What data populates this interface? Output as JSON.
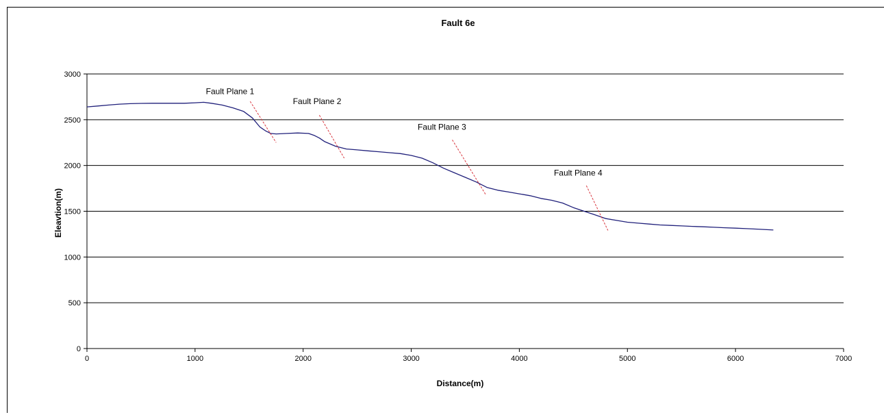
{
  "chart_data": {
    "type": "line",
    "title": "Fault 6e",
    "xlabel": "Distance(m)",
    "ylabel": "Eleavtion(m)",
    "xlim": [
      0,
      7000
    ],
    "ylim": [
      0,
      3000
    ],
    "x_ticks": [
      0,
      1000,
      2000,
      3000,
      4000,
      5000,
      6000,
      7000
    ],
    "y_ticks": [
      0,
      500,
      1000,
      1500,
      2000,
      2500,
      3000
    ],
    "grid": "horizontal",
    "legend": "none",
    "colors": {
      "profile": "#1f1f7a",
      "fault_lines": "#d9363e",
      "grid": "#000000"
    },
    "series": [
      {
        "x": [
          0,
          100,
          200,
          300,
          400,
          500,
          600,
          700,
          800,
          900,
          1000,
          1080,
          1150,
          1250,
          1350,
          1450,
          1530,
          1600,
          1650,
          1700,
          1750,
          1850,
          1950,
          2050,
          2100,
          2150,
          2200,
          2300,
          2400,
          2500,
          2600,
          2700,
          2800,
          2900,
          3000,
          3100,
          3200,
          3300,
          3400,
          3500,
          3600,
          3700,
          3800,
          3900,
          4000,
          4100,
          4200,
          4300,
          4400,
          4500,
          4600,
          4700,
          4800,
          4900,
          5000,
          5100,
          5200,
          5300,
          5400,
          5500,
          5600,
          5700,
          5800,
          5900,
          6000,
          6100,
          6200,
          6350
        ],
        "y": [
          2640,
          2650,
          2660,
          2670,
          2675,
          2678,
          2680,
          2680,
          2680,
          2680,
          2685,
          2690,
          2680,
          2660,
          2630,
          2590,
          2520,
          2420,
          2380,
          2350,
          2345,
          2350,
          2355,
          2350,
          2330,
          2300,
          2260,
          2210,
          2180,
          2170,
          2160,
          2150,
          2140,
          2130,
          2110,
          2080,
          2030,
          1970,
          1920,
          1870,
          1820,
          1760,
          1730,
          1710,
          1690,
          1670,
          1640,
          1620,
          1590,
          1540,
          1500,
          1460,
          1420,
          1400,
          1380,
          1370,
          1360,
          1350,
          1345,
          1340,
          1335,
          1330,
          1325,
          1320,
          1315,
          1310,
          1305,
          1295
        ]
      }
    ],
    "annotations": [
      {
        "label": "Fault Plane 1",
        "text_x": 1100,
        "text_y": 2780,
        "line": [
          [
            1510,
            2700
          ],
          [
            1750,
            2250
          ]
        ]
      },
      {
        "label": "Fault Plane 2",
        "text_x": 1905,
        "text_y": 2670,
        "line": [
          [
            2150,
            2550
          ],
          [
            2380,
            2080
          ]
        ]
      },
      {
        "label": "Fault Plane 3",
        "text_x": 3060,
        "text_y": 2390,
        "line": [
          [
            3380,
            2280
          ],
          [
            3690,
            1680
          ]
        ]
      },
      {
        "label": "Fault Plane 4",
        "text_x": 4320,
        "text_y": 1890,
        "line": [
          [
            4620,
            1780
          ],
          [
            4820,
            1290
          ]
        ]
      }
    ]
  }
}
